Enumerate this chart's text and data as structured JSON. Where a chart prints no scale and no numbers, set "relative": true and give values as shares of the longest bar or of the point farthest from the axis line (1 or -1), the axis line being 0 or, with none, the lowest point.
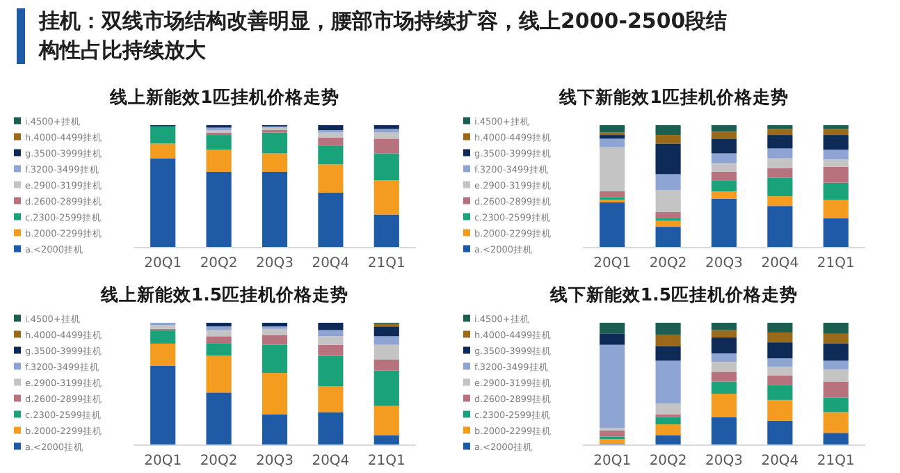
{
  "chart_data": [
    {
      "type": "other",
      "title": "挂机：双线市场结构改善明显，腰部市场持续扩容，线上2000-2500段结构性占比持续放大"
    },
    {
      "type": "bar",
      "stacked": true,
      "relative": true,
      "legend": "left",
      "title": "线上新能效1匹挂机价格走势",
      "categories": [
        "20Q1",
        "20Q2",
        "20Q3",
        "20Q4",
        "21Q1"
      ],
      "series": [
        {
          "name": "a.<2000挂机",
          "color": "#1f5aa6",
          "values": [
            0.73,
            0.62,
            0.62,
            0.45,
            0.27
          ]
        },
        {
          "name": "b.2000-2299挂机",
          "color": "#f39c1f",
          "values": [
            0.12,
            0.18,
            0.15,
            0.23,
            0.28
          ]
        },
        {
          "name": "c.2300-2599挂机",
          "color": "#1aa37a",
          "values": [
            0.14,
            0.12,
            0.17,
            0.15,
            0.22
          ]
        },
        {
          "name": "d.2600-2899挂机",
          "color": "#b8727d",
          "values": [
            0,
            0.02,
            0.02,
            0.07,
            0.12
          ]
        },
        {
          "name": "e.2900-3199挂机",
          "color": "#c4c4c4",
          "values": [
            0,
            0.02,
            0.02,
            0.04,
            0.05
          ]
        },
        {
          "name": "f.3200-3499挂机",
          "color": "#8ea5d4",
          "values": [
            0,
            0.02,
            0.01,
            0.02,
            0.03
          ]
        },
        {
          "name": "g.3500-3999挂机",
          "color": "#0e2a56",
          "values": [
            0.01,
            0.02,
            0.01,
            0.04,
            0.03
          ]
        },
        {
          "name": "h.4000-4499挂机",
          "color": "#9a6a1a",
          "values": [
            0,
            0,
            0,
            0,
            0
          ]
        },
        {
          "name": "i.4500+挂机",
          "color": "#1c5e4f",
          "values": [
            0,
            0,
            0,
            0,
            0
          ]
        }
      ]
    },
    {
      "type": "bar",
      "stacked": true,
      "relative": true,
      "legend": "left",
      "title": "线下新能效1匹挂机价格走势",
      "categories": [
        "20Q1",
        "20Q2",
        "20Q3",
        "20Q4",
        "21Q1"
      ],
      "series": [
        {
          "name": "a.<2000挂机",
          "color": "#1f5aa6",
          "values": [
            0.37,
            0.17,
            0.4,
            0.34,
            0.24
          ]
        },
        {
          "name": "b.2000-2299挂机",
          "color": "#f39c1f",
          "values": [
            0.02,
            0.05,
            0.06,
            0.08,
            0.15
          ]
        },
        {
          "name": "c.2300-2599挂机",
          "color": "#1aa37a",
          "values": [
            0.02,
            0.02,
            0.09,
            0.15,
            0.14
          ]
        },
        {
          "name": "d.2600-2899挂机",
          "color": "#b8727d",
          "values": [
            0.05,
            0.05,
            0.07,
            0.08,
            0.13
          ]
        },
        {
          "name": "e.2900-3199挂机",
          "color": "#c4c4c4",
          "values": [
            0.36,
            0.18,
            0.07,
            0.08,
            0.06
          ]
        },
        {
          "name": "f.3200-3499挂机",
          "color": "#8ea5d4",
          "values": [
            0.07,
            0.13,
            0.08,
            0.08,
            0.08
          ]
        },
        {
          "name": "g.3500-3999挂机",
          "color": "#0e2a56",
          "values": [
            0.03,
            0.25,
            0.12,
            0.11,
            0.12
          ]
        },
        {
          "name": "h.4000-4499挂机",
          "color": "#9a6a1a",
          "values": [
            0.02,
            0.07,
            0.06,
            0.05,
            0.05
          ]
        },
        {
          "name": "i.4500+挂机",
          "color": "#1c5e4f",
          "values": [
            0.06,
            0.08,
            0.05,
            0.03,
            0.03
          ]
        }
      ]
    },
    {
      "type": "bar",
      "stacked": true,
      "relative": true,
      "legend": "left",
      "title": "线上新能效1.5匹挂机价格走势",
      "categories": [
        "20Q1",
        "20Q2",
        "20Q3",
        "20Q4",
        "21Q1"
      ],
      "series": [
        {
          "name": "a.<2000挂机",
          "color": "#1f5aa6",
          "values": [
            0.65,
            0.43,
            0.25,
            0.27,
            0.08
          ]
        },
        {
          "name": "b.2000-2299挂机",
          "color": "#f39c1f",
          "values": [
            0.18,
            0.3,
            0.34,
            0.21,
            0.24
          ]
        },
        {
          "name": "c.2300-2599挂机",
          "color": "#1aa37a",
          "values": [
            0.11,
            0.1,
            0.23,
            0.25,
            0.29
          ]
        },
        {
          "name": "d.2600-2899挂机",
          "color": "#b8727d",
          "values": [
            0.01,
            0.06,
            0.08,
            0.09,
            0.09
          ]
        },
        {
          "name": "e.2900-3199挂机",
          "color": "#c4c4c4",
          "values": [
            0.03,
            0.05,
            0.05,
            0.07,
            0.12
          ]
        },
        {
          "name": "f.3200-3499挂机",
          "color": "#8ea5d4",
          "values": [
            0.02,
            0.03,
            0.02,
            0.05,
            0.07
          ]
        },
        {
          "name": "g.3500-3999挂机",
          "color": "#0e2a56",
          "values": [
            0,
            0.03,
            0.03,
            0.06,
            0.08
          ]
        },
        {
          "name": "h.4000-4499挂机",
          "color": "#9a6a1a",
          "values": [
            0,
            0,
            0,
            0,
            0.02
          ]
        },
        {
          "name": "i.4500+挂机",
          "color": "#1c5e4f",
          "values": [
            0,
            0,
            0,
            0,
            0.01
          ]
        }
      ]
    },
    {
      "type": "bar",
      "stacked": true,
      "relative": true,
      "legend": "left",
      "title": "线下新能效1.5匹挂机价格走势",
      "categories": [
        "20Q1",
        "20Q2",
        "20Q3",
        "20Q4",
        "21Q1"
      ],
      "series": [
        {
          "name": "a.<2000挂机",
          "color": "#1f5aa6",
          "values": [
            0.01,
            0.08,
            0.23,
            0.2,
            0.1
          ]
        },
        {
          "name": "b.2000-2299挂机",
          "color": "#f39c1f",
          "values": [
            0.04,
            0.09,
            0.19,
            0.17,
            0.17
          ]
        },
        {
          "name": "c.2300-2599挂机",
          "color": "#1aa37a",
          "values": [
            0.02,
            0.06,
            0.1,
            0.12,
            0.12
          ]
        },
        {
          "name": "d.2600-2899挂机",
          "color": "#b8727d",
          "values": [
            0.05,
            0.02,
            0.08,
            0.08,
            0.13
          ]
        },
        {
          "name": "e.2900-3199挂机",
          "color": "#c4c4c4",
          "values": [
            0.02,
            0.09,
            0.08,
            0.07,
            0.1
          ]
        },
        {
          "name": "f.3200-3499挂机",
          "color": "#8ea5d4",
          "values": [
            0.68,
            0.35,
            0.07,
            0.07,
            0.07
          ]
        },
        {
          "name": "g.3500-3999挂机",
          "color": "#0e2a56",
          "values": [
            0.09,
            0.12,
            0.13,
            0.13,
            0.14
          ]
        },
        {
          "name": "h.4000-4499挂机",
          "color": "#9a6a1a",
          "values": [
            0,
            0.09,
            0.06,
            0.08,
            0.08
          ]
        },
        {
          "name": "i.4500+挂机",
          "color": "#1c5e4f",
          "values": [
            0.09,
            0.1,
            0.06,
            0.08,
            0.09
          ]
        }
      ]
    }
  ]
}
